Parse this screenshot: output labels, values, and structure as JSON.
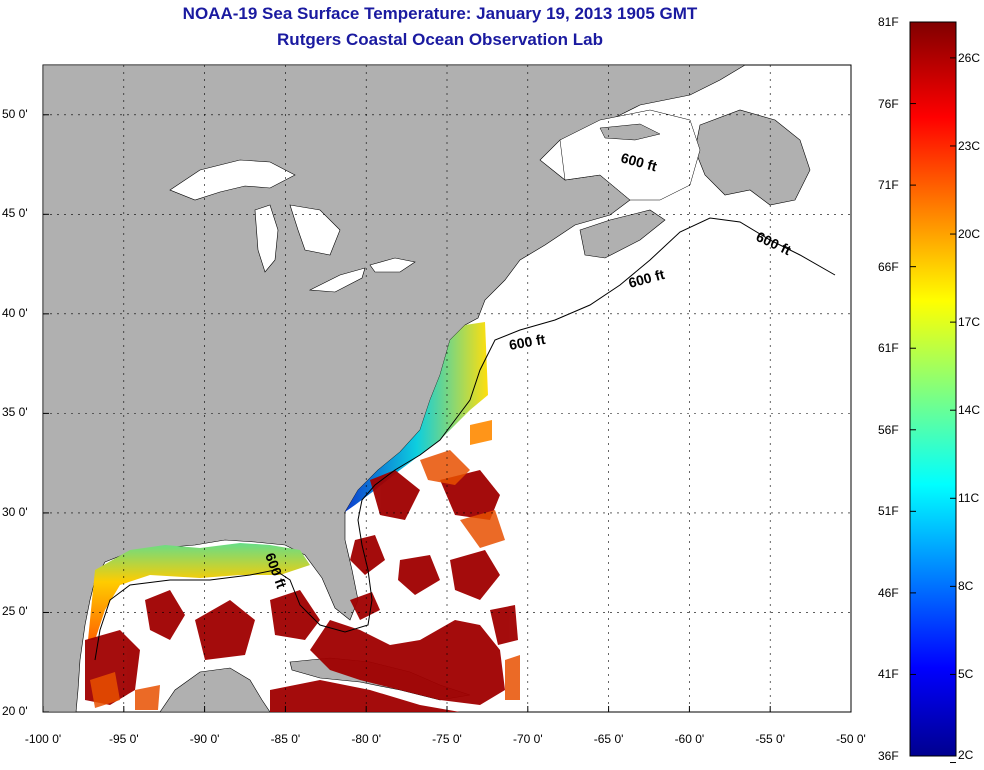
{
  "title": "NOAA-19 Sea Surface Temperature:  January 19, 2013 1905 GMT",
  "subtitle": "Rutgers Coastal Ocean Observation Lab",
  "map": {
    "lon_range": [
      -100,
      -50
    ],
    "lat_range": [
      20,
      52.5
    ],
    "x_ticks": [
      "-100 0'",
      "-95 0'",
      "-90 0'",
      "-85 0'",
      "-80 0'",
      "-75 0'",
      "-70 0'",
      "-65 0'",
      "-60 0'",
      "-55 0'",
      "-50 0'"
    ],
    "y_ticks": [
      "50 0'",
      "45 0'",
      "40 0'",
      "35 0'",
      "30 0'",
      "25 0'",
      "20 0'"
    ],
    "grid": true,
    "contour_label": "600 ft",
    "land_color": "#b0b0b0"
  },
  "colorbar": {
    "f_labels": [
      "81F",
      "76F",
      "71F",
      "66F",
      "61F",
      "56F",
      "51F",
      "46F",
      "41F",
      "36F"
    ],
    "c_labels": [
      "26C",
      "23C",
      "20C",
      "17C",
      "14C",
      "11C",
      "8C",
      "5C",
      "2C"
    ],
    "colormap": "jet"
  }
}
